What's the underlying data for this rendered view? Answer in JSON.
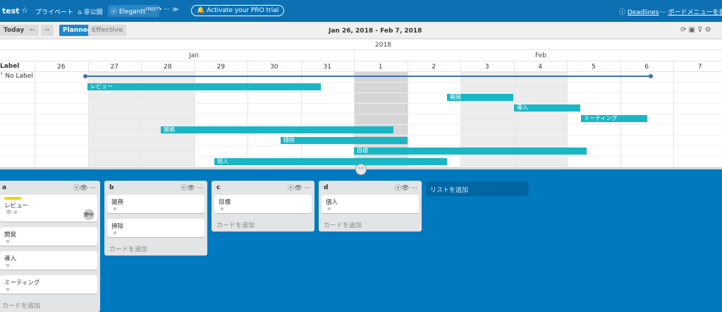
{
  "header": {
    "board_title": "test",
    "visibility": "プライベート",
    "team": "非公開",
    "powerup": "Elegantt",
    "badge": "FREE",
    "trial": "Activate your PRO trial",
    "deadlines": "Deadlines",
    "menu": "ボードメニューを表示"
  },
  "toolbar": {
    "today": "Today",
    "planned": "Planned",
    "effective": "Effective",
    "range": "Jan 26, 2018 - Feb 7, 2018"
  },
  "timeline": {
    "label_header": "Label",
    "group": "No Label",
    "year": "2018",
    "months": [
      "Jan",
      "Feb"
    ],
    "days": [
      "26",
      "27",
      "28",
      "29",
      "30",
      "31",
      "1",
      "2",
      "3",
      "4",
      "5",
      "6",
      "7"
    ],
    "bars": [
      "レビュー",
      "開発",
      "導入",
      "ミーティング",
      "雑務",
      "掃除",
      "目標",
      "個人"
    ]
  },
  "lists": [
    {
      "name": "a",
      "cards": [
        {
          "title": "レビュー",
          "member": "野中"
        },
        {
          "title": "開発"
        },
        {
          "title": "導入"
        },
        {
          "title": "ミーティング"
        }
      ],
      "add_card": "カードを追加"
    },
    {
      "name": "b",
      "cards": [
        {
          "title": "雑務"
        },
        {
          "title": "掃除"
        }
      ],
      "add_card": "カードを追加"
    },
    {
      "name": "c",
      "cards": [
        {
          "title": "目標"
        }
      ],
      "add_card": "カードを追加"
    },
    {
      "name": "d",
      "cards": [
        {
          "title": "個人"
        }
      ],
      "add_card": "カードを追加"
    }
  ],
  "add_list": "リストを追加"
}
